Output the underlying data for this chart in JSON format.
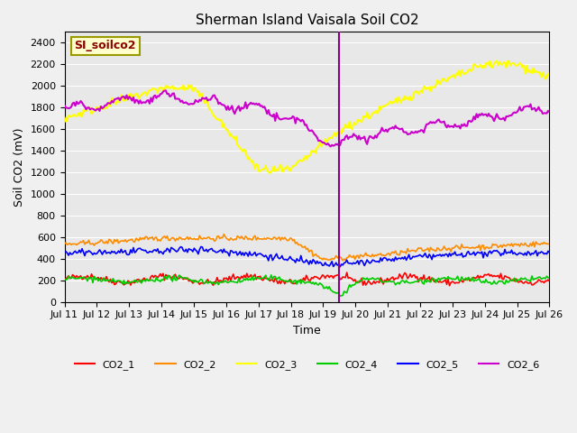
{
  "title": "Sherman Island Vaisala Soil CO2",
  "ylabel": "Soil CO2 (mV)",
  "xlabel": "Time",
  "watermark": "SI_soilco2",
  "ylim": [
    0,
    2500
  ],
  "yticks": [
    0,
    200,
    400,
    600,
    800,
    1000,
    1200,
    1400,
    1600,
    1800,
    2000,
    2200,
    2400
  ],
  "xtick_labels": [
    "Jul 11",
    "Jul 12",
    "Jul 13",
    "Jul 14",
    "Jul 15",
    "Jul 16",
    "Jul 17",
    "Jul 18",
    "Jul 19",
    "Jul 20",
    "Jul 21",
    "Jul 22",
    "Jul 23",
    "Jul 24",
    "Jul 25",
    "Jul 26"
  ],
  "vline_x": 8.5,
  "vline_color": "#8B008B",
  "line_colors": {
    "CO2_1": "#FF0000",
    "CO2_2": "#FF8C00",
    "CO2_3": "#FFFF00",
    "CO2_4": "#00CC00",
    "CO2_5": "#0000FF",
    "CO2_6": "#CC00CC"
  },
  "background_color": "#E8E8E8",
  "watermark_bg": "#FFFFCC",
  "watermark_border": "#999900",
  "watermark_text_color": "#8B0000"
}
